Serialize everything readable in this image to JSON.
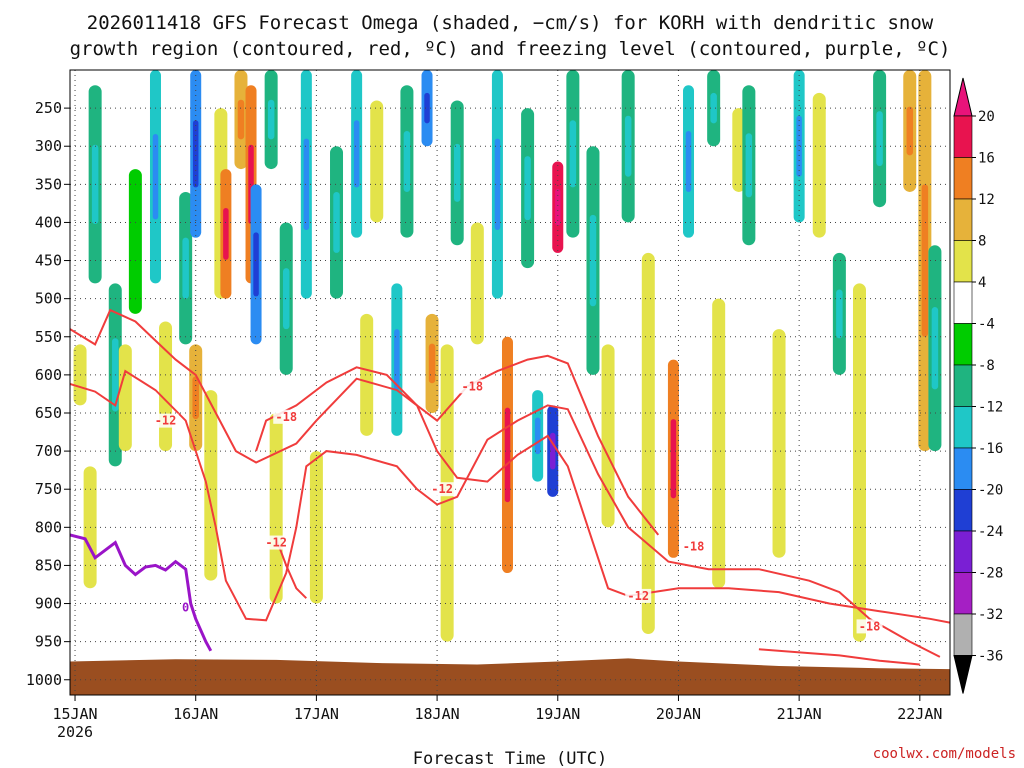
{
  "chart_data": {
    "type": "heatmap",
    "title_line1": "2026011418 GFS Forecast Omega (shaded, −cm/s) for KORH with dendritic snow",
    "title_line2": "growth region (contoured, red, ºC) and freezing level (contoured, purple, ºC)",
    "xlabel": "Forecast Time (UTC)",
    "credit": "coolwx.com/models",
    "x_ticks": [
      {
        "label": "15JAN",
        "sub": "2026",
        "hour": 0
      },
      {
        "label": "16JAN",
        "hour": 24
      },
      {
        "label": "17JAN",
        "hour": 48
      },
      {
        "label": "18JAN",
        "hour": 72
      },
      {
        "label": "19JAN",
        "hour": 96
      },
      {
        "label": "20JAN",
        "hour": 120
      },
      {
        "label": "21JAN",
        "hour": 144
      },
      {
        "label": "22JAN",
        "hour": 168
      }
    ],
    "x_range_hours": [
      -1,
      174
    ],
    "y_ticks": [
      250,
      300,
      350,
      400,
      450,
      500,
      550,
      600,
      650,
      700,
      750,
      800,
      850,
      900,
      950,
      1000
    ],
    "y_range_hpa": [
      200,
      1020
    ],
    "colorbar": {
      "labels": [
        "20",
        "16",
        "12",
        "8",
        "4",
        "-4",
        "-8",
        "-12",
        "-16",
        "-20",
        "-24",
        "-28",
        "-32",
        "-36"
      ],
      "colors": [
        "#e8134f",
        "#ef7f22",
        "#e6b23a",
        "#e3e34a",
        "#ffffff",
        "#00cc00",
        "#1fb480",
        "#1fc7c7",
        "#2b8cf2",
        "#1f3fd4",
        "#7a1fd4",
        "#a51fc4",
        "#b0b0b0",
        "#000000"
      ],
      "top_arrow_color": "#e8137a"
    },
    "omega_cells": [
      {
        "t": 3,
        "p1": 720,
        "p2": 880,
        "v": 4
      },
      {
        "t": 1,
        "p1": 560,
        "p2": 640,
        "v": 4
      },
      {
        "t": 4,
        "p1": 220,
        "p2": 480,
        "v": -8
      },
      {
        "t": 8,
        "p1": 480,
        "p2": 720,
        "v": -8
      },
      {
        "t": 12,
        "p1": 330,
        "p2": 520,
        "v": -4
      },
      {
        "t": 10,
        "p1": 560,
        "p2": 700,
        "v": 6
      },
      {
        "t": 16,
        "p1": 200,
        "p2": 480,
        "v": -12
      },
      {
        "t": 18,
        "p1": 530,
        "p2": 700,
        "v": 6
      },
      {
        "t": 22,
        "p1": 360,
        "p2": 560,
        "v": -8
      },
      {
        "t": 24,
        "p1": 200,
        "p2": 420,
        "v": -16
      },
      {
        "t": 24,
        "p1": 560,
        "p2": 700,
        "v": 8
      },
      {
        "t": 27,
        "p1": 620,
        "p2": 870,
        "v": 6
      },
      {
        "t": 29,
        "p1": 250,
        "p2": 500,
        "v": 6
      },
      {
        "t": 30,
        "p1": 330,
        "p2": 500,
        "v": 14
      },
      {
        "t": 33,
        "p1": 200,
        "p2": 330,
        "v": 8
      },
      {
        "t": 35,
        "p1": 220,
        "p2": 480,
        "v": 12
      },
      {
        "t": 36,
        "p1": 350,
        "p2": 560,
        "v": -16
      },
      {
        "t": 39,
        "p1": 200,
        "p2": 330,
        "v": -8
      },
      {
        "t": 40,
        "p1": 650,
        "p2": 900,
        "v": 6
      },
      {
        "t": 42,
        "p1": 400,
        "p2": 600,
        "v": -8
      },
      {
        "t": 46,
        "p1": 200,
        "p2": 500,
        "v": -12
      },
      {
        "t": 48,
        "p1": 700,
        "p2": 900,
        "v": 6
      },
      {
        "t": 52,
        "p1": 300,
        "p2": 500,
        "v": -8
      },
      {
        "t": 56,
        "p1": 200,
        "p2": 420,
        "v": -12
      },
      {
        "t": 58,
        "p1": 520,
        "p2": 680,
        "v": 6
      },
      {
        "t": 60,
        "p1": 240,
        "p2": 400,
        "v": 6
      },
      {
        "t": 64,
        "p1": 480,
        "p2": 680,
        "v": -12
      },
      {
        "t": 66,
        "p1": 220,
        "p2": 420,
        "v": -8
      },
      {
        "t": 70,
        "p1": 200,
        "p2": 300,
        "v": -16
      },
      {
        "t": 71,
        "p1": 520,
        "p2": 650,
        "v": 10
      },
      {
        "t": 74,
        "p1": 560,
        "p2": 950,
        "v": 6
      },
      {
        "t": 76,
        "p1": 240,
        "p2": 430,
        "v": -8
      },
      {
        "t": 80,
        "p1": 400,
        "p2": 560,
        "v": 6
      },
      {
        "t": 84,
        "p1": 200,
        "p2": 500,
        "v": -12
      },
      {
        "t": 86,
        "p1": 550,
        "p2": 860,
        "v": 12
      },
      {
        "t": 90,
        "p1": 250,
        "p2": 460,
        "v": -8
      },
      {
        "t": 92,
        "p1": 620,
        "p2": 740,
        "v": -12
      },
      {
        "t": 96,
        "p1": 320,
        "p2": 440,
        "v": 18
      },
      {
        "t": 95,
        "p1": 640,
        "p2": 760,
        "v": -20
      },
      {
        "t": 99,
        "p1": 200,
        "p2": 420,
        "v": -8
      },
      {
        "t": 103,
        "p1": 300,
        "p2": 600,
        "v": -8
      },
      {
        "t": 106,
        "p1": 560,
        "p2": 800,
        "v": 6
      },
      {
        "t": 110,
        "p1": 200,
        "p2": 400,
        "v": -8
      },
      {
        "t": 114,
        "p1": 440,
        "p2": 940,
        "v": 6
      },
      {
        "t": 119,
        "p1": 580,
        "p2": 840,
        "v": 12
      },
      {
        "t": 122,
        "p1": 220,
        "p2": 420,
        "v": -12
      },
      {
        "t": 127,
        "p1": 200,
        "p2": 300,
        "v": -8
      },
      {
        "t": 128,
        "p1": 500,
        "p2": 880,
        "v": 6
      },
      {
        "t": 132,
        "p1": 250,
        "p2": 360,
        "v": 6
      },
      {
        "t": 134,
        "p1": 220,
        "p2": 430,
        "v": -8
      },
      {
        "t": 140,
        "p1": 540,
        "p2": 840,
        "v": 6
      },
      {
        "t": 144,
        "p1": 200,
        "p2": 400,
        "v": -12
      },
      {
        "t": 148,
        "p1": 230,
        "p2": 420,
        "v": 6
      },
      {
        "t": 152,
        "p1": 440,
        "p2": 600,
        "v": -8
      },
      {
        "t": 156,
        "p1": 480,
        "p2": 950,
        "v": 6
      },
      {
        "t": 160,
        "p1": 200,
        "p2": 380,
        "v": -8
      },
      {
        "t": 166,
        "p1": 200,
        "p2": 360,
        "v": 10
      },
      {
        "t": 169,
        "p1": 200,
        "p2": 700,
        "v": 10
      },
      {
        "t": 171,
        "p1": 430,
        "p2": 700,
        "v": -8
      }
    ],
    "dgz_contours": [
      {
        "level": "-12",
        "points": [
          [
            -1,
            540
          ],
          [
            4,
            560
          ],
          [
            7,
            515
          ],
          [
            12,
            530
          ],
          [
            16,
            555
          ],
          [
            20,
            580
          ],
          [
            24,
            600
          ],
          [
            28,
            650
          ],
          [
            32,
            700
          ],
          [
            36,
            715
          ],
          [
            44,
            690
          ],
          [
            48,
            660
          ],
          [
            56,
            605
          ],
          [
            64,
            620
          ],
          [
            68,
            640
          ],
          [
            72,
            700
          ],
          [
            76,
            735
          ],
          [
            82,
            740
          ],
          [
            88,
            705
          ],
          [
            94,
            680
          ],
          [
            98,
            720
          ],
          [
            102,
            800
          ],
          [
            106,
            880
          ],
          [
            110,
            890
          ],
          [
            120,
            880
          ],
          [
            130,
            880
          ],
          [
            140,
            885
          ],
          [
            150,
            900
          ],
          [
            160,
            910
          ],
          [
            170,
            920
          ],
          [
            174,
            925
          ]
        ]
      },
      {
        "level": "-18",
        "points": [
          [
            -1,
            612
          ],
          [
            4,
            622
          ],
          [
            8,
            640
          ],
          [
            10,
            595
          ],
          [
            16,
            620
          ],
          [
            22,
            660
          ],
          [
            26,
            740
          ],
          [
            28,
            800
          ],
          [
            30,
            870
          ],
          [
            34,
            920
          ],
          [
            38,
            922
          ],
          [
            42,
            860
          ],
          [
            44,
            800
          ],
          [
            46,
            720
          ],
          [
            50,
            700
          ],
          [
            56,
            705
          ],
          [
            64,
            720
          ],
          [
            68,
            750
          ],
          [
            72,
            770
          ],
          [
            76,
            760
          ],
          [
            82,
            685
          ],
          [
            88,
            660
          ],
          [
            94,
            640
          ],
          [
            98,
            645
          ],
          [
            104,
            730
          ],
          [
            110,
            800
          ],
          [
            118,
            845
          ],
          [
            126,
            855
          ],
          [
            136,
            855
          ],
          [
            146,
            870
          ],
          [
            152,
            885
          ],
          [
            158,
            920
          ],
          [
            166,
            950
          ],
          [
            172,
            970
          ]
        ]
      },
      {
        "level": "-18b",
        "points": [
          [
            36,
            700
          ],
          [
            38,
            660
          ],
          [
            44,
            640
          ],
          [
            50,
            610
          ],
          [
            56,
            590
          ],
          [
            62,
            600
          ],
          [
            68,
            640
          ],
          [
            72,
            660
          ],
          [
            78,
            615
          ],
          [
            84,
            595
          ],
          [
            90,
            580
          ],
          [
            94,
            575
          ],
          [
            98,
            585
          ],
          [
            104,
            680
          ],
          [
            110,
            760
          ],
          [
            116,
            810
          ]
        ]
      },
      {
        "level": "-12b",
        "points": [
          [
            40,
            815
          ],
          [
            42,
            850
          ],
          [
            44,
            880
          ],
          [
            46,
            893
          ]
        ]
      },
      {
        "level": "-18c",
        "points": [
          [
            136,
            960
          ],
          [
            146,
            965
          ],
          [
            152,
            968
          ],
          [
            160,
            975
          ],
          [
            168,
            980
          ]
        ]
      }
    ],
    "dgz_labels": [
      {
        "text": "-12",
        "t": 18,
        "p": 660
      },
      {
        "text": "-18",
        "t": 42,
        "p": 655
      },
      {
        "text": "-12",
        "t": 40,
        "p": 820
      },
      {
        "text": "-18",
        "t": 79,
        "p": 615
      },
      {
        "text": "-12",
        "t": 73,
        "p": 750
      },
      {
        "text": "-12",
        "t": 112,
        "p": 890
      },
      {
        "text": "-18",
        "t": 123,
        "p": 825
      },
      {
        "text": "-18",
        "t": 158,
        "p": 930
      }
    ],
    "freezing_contour": {
      "level": "0",
      "points": [
        [
          -1,
          810
        ],
        [
          2,
          815
        ],
        [
          4,
          840
        ],
        [
          6,
          830
        ],
        [
          8,
          820
        ],
        [
          10,
          850
        ],
        [
          12,
          862
        ],
        [
          14,
          852
        ],
        [
          16,
          850
        ],
        [
          18,
          856
        ],
        [
          20,
          845
        ],
        [
          22,
          855
        ],
        [
          23,
          900
        ],
        [
          24,
          920
        ],
        [
          26,
          950
        ],
        [
          27,
          962
        ]
      ]
    },
    "freezing_label": {
      "text": "0",
      "t": 22,
      "p": 905
    },
    "terrain_top_hpa": [
      [
        -1,
        976
      ],
      [
        20,
        973
      ],
      [
        40,
        974
      ],
      [
        60,
        978
      ],
      [
        80,
        980
      ],
      [
        96,
        976
      ],
      [
        110,
        972
      ],
      [
        120,
        976
      ],
      [
        140,
        982
      ],
      [
        160,
        985
      ],
      [
        174,
        986
      ]
    ],
    "colors": {
      "dgz": "#f03c3c",
      "freezing": "#9a14c8",
      "terrain": "#9a4e20",
      "grid": "#444444"
    }
  }
}
